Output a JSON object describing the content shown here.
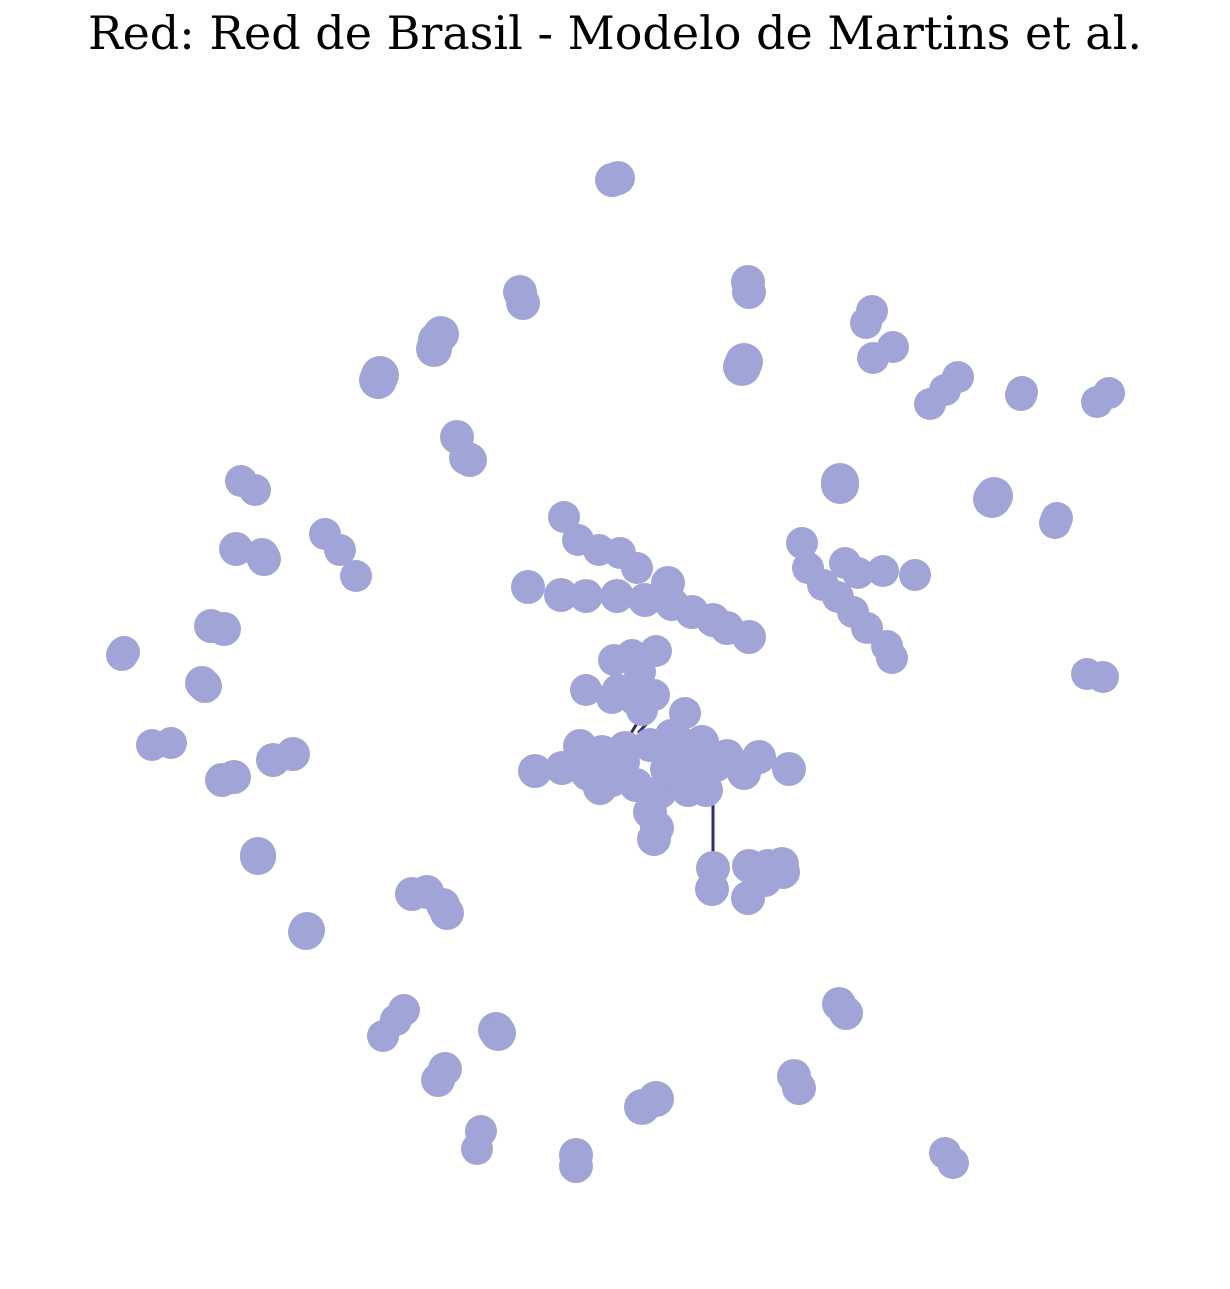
{
  "title": "Red: Red de Brasil - Modelo de Martins et al.",
  "colors": {
    "node": "#a1a4d6",
    "edge": "#2b2f6b",
    "background": "#ffffff"
  },
  "network": {
    "layout": "force-directed",
    "node_shape": "circle",
    "clusters": 55,
    "edges_visible": 3
  }
}
